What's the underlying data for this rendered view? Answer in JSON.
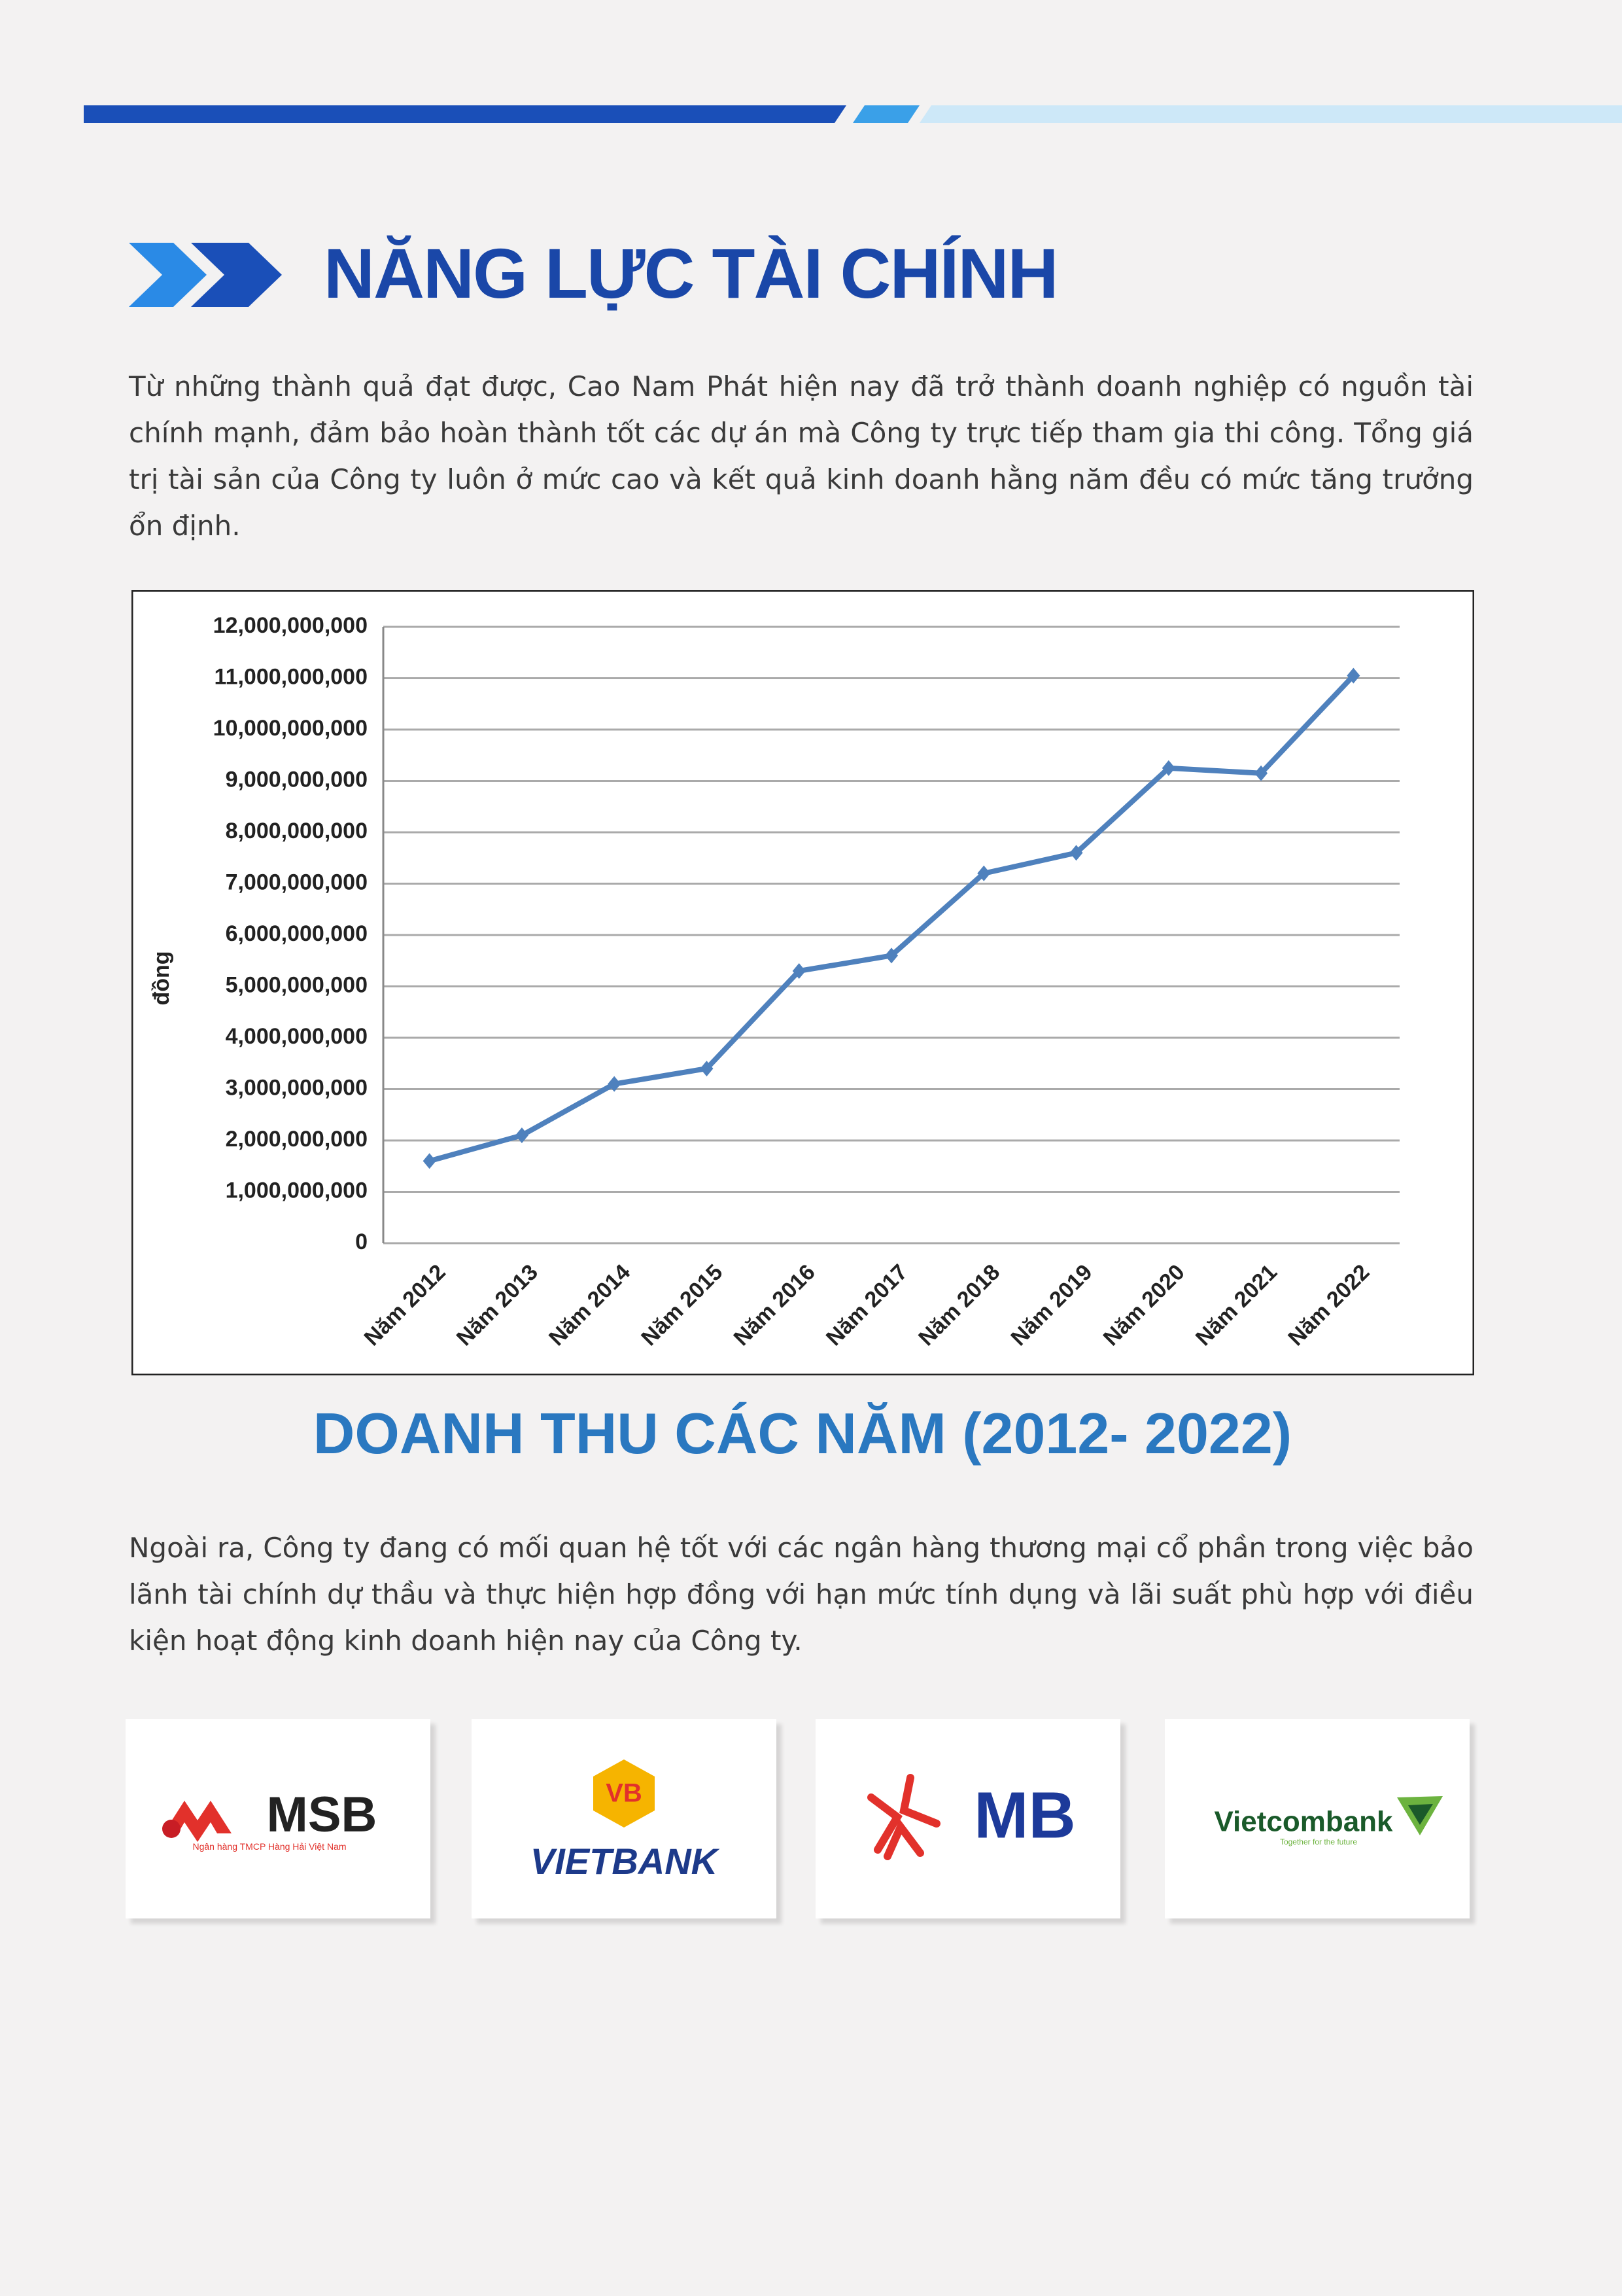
{
  "title": "NĂNG LỰC TÀI CHÍNH",
  "intro": "Từ những thành quả đạt được, Cao Nam Phát hiện nay đã trở thành doanh nghiệp có nguồn tài chính mạnh, đảm bảo hoàn thành tốt các dự án mà Công ty trực tiếp tham gia thi công. Tổng giá trị tài sản của Công ty luôn ở mức cao và kết quả kinh doanh hằng năm đều có mức tăng trưởng ổn định.",
  "chart_data": {
    "type": "line",
    "y_label": "đồng",
    "categories": [
      "Năm 2012",
      "Năm 2013",
      "Năm 2014",
      "Năm 2015",
      "Năm 2016",
      "Năm 2017",
      "Năm 2018",
      "Năm 2019",
      "Năm 2020",
      "Năm 2021",
      "Năm 2022"
    ],
    "values": [
      1600000000,
      2100000000,
      3100000000,
      3400000000,
      5300000000,
      5600000000,
      7200000000,
      7600000000,
      9250000000,
      9150000000,
      11050000000
    ],
    "color": "#4f81bd",
    "ylim": [
      0,
      12000000000
    ],
    "yticks": [
      0,
      {
        "value": 1000000000,
        "label": "1,000,000,000"
      },
      {
        "value": 2000000000,
        "label": "2,000,000,000"
      },
      {
        "value": 3000000000,
        "label": "3,000,000,000"
      },
      {
        "value": 4000000000,
        "label": "4,000,000,000"
      },
      {
        "value": 5000000000,
        "label": "5,000,000,000"
      },
      {
        "value": 6000000000,
        "label": "6,000,000,000"
      },
      {
        "value": 7000000000,
        "label": "7,000,000,000"
      },
      {
        "value": 8000000000,
        "label": "8,000,000,000"
      },
      {
        "value": 9000000000,
        "label": "9,000,000,000"
      },
      {
        "value": 10000000000,
        "label": "10,000,000,000"
      },
      {
        "value": 11000000000,
        "label": "11,000,000,000"
      },
      {
        "value": 12000000000,
        "label": "12,000,000,000"
      }
    ],
    "grid": true
  },
  "caption": "DOANH THU CÁC NĂM (2012- 2022)",
  "outro": "Ngoài ra, Công ty đang có mối quan hệ tốt với các ngân hàng thương mại cổ phần trong việc bảo lãnh tài chính dự thầu và thực hiện hợp đồng với hạn mức tính dụng và lãi suất phù hợp với điều kiện hoạt động kinh doanh hiện nay của Công ty.",
  "banks": [
    {
      "name": "MSB",
      "subtitle": "Ngân hàng TMCP Hàng Hải Việt Nam"
    },
    {
      "badge": "VB",
      "name": "VIETBANK"
    },
    {
      "name": "MB"
    },
    {
      "name": "Vietcombank",
      "subtitle": "Together for the future"
    }
  ]
}
